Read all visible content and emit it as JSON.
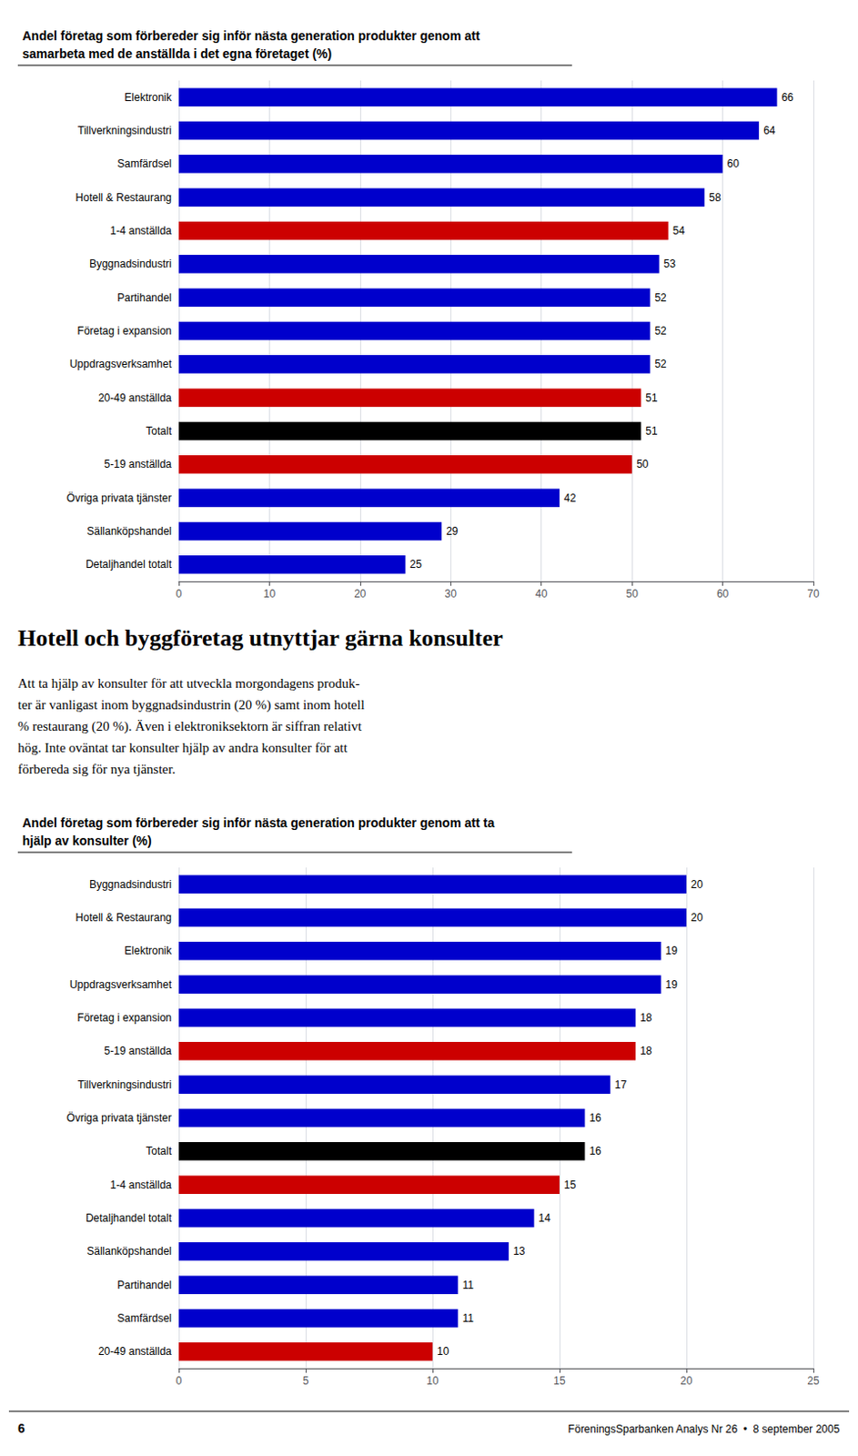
{
  "chart_data": [
    {
      "type": "bar",
      "title": "Andel företag som förbereder sig inför nästa generation produkter genom att\nsamarbeta med de anställda i det egna företaget (%)",
      "orientation": "horizontal",
      "categories": [
        "Elektronik",
        "Tillverkningsindustri",
        "Samfärdsel",
        "Hotell & Restaurang",
        "1-4 anställda",
        "Byggnadsindustri",
        "Partihandel",
        "Företag i expansion",
        "Uppdragsverksamhet",
        "20-49 anställda",
        "Totalt",
        "5-19 anställda",
        "Övriga privata tjänster",
        "Sällanköpshandel",
        "Detaljhandel totalt"
      ],
      "values": [
        66,
        64,
        60,
        58,
        54,
        53,
        52,
        52,
        52,
        51,
        51,
        50,
        42,
        29,
        25
      ],
      "colors": [
        "#0000cc",
        "#0000cc",
        "#0000cc",
        "#0000cc",
        "#cc0000",
        "#0000cc",
        "#0000cc",
        "#0000cc",
        "#0000cc",
        "#cc0000",
        "#000000",
        "#cc0000",
        "#0000cc",
        "#0000cc",
        "#0000cc"
      ],
      "xlim": [
        0,
        70
      ],
      "xticks": [
        0,
        10,
        20,
        30,
        40,
        50,
        60,
        70
      ],
      "grid": true,
      "data_labels": true,
      "annotations": [
        "Hotell och byggföretag utnyttjar gärna konsulter",
        "Att ta hjälp av konsulter för att utveckla morgondagens produk-\nter är vanligast inom byggnadsindustrin (20 %) samt inom hotell\n% restaurang (20 %). Även i elektroniksektorn är siffran relativt\nhög. Inte oväntat tar konsulter hjälp av andra konsulter för att\nförbereda sig för nya tjänster."
      ]
    },
    {
      "type": "bar",
      "title": "Andel företag som förbereder sig inför nästa generation produkter genom att ta\nhjälp av konsulter (%)",
      "orientation": "horizontal",
      "categories": [
        "Byggnadsindustri",
        "Hotell & Restaurang",
        "Elektronik",
        "Uppdragsverksamhet",
        "Företag i expansion",
        "5-19 anställda",
        "Tillverkningsindustri",
        "Övriga privata tjänster",
        "Totalt",
        "1-4 anställda",
        "Detaljhandel totalt",
        "Sällanköpshandel",
        "Partihandel",
        "Samfärdsel",
        "20-49 anställda"
      ],
      "values": [
        20,
        20,
        19,
        19,
        18,
        18,
        17,
        16,
        16,
        15,
        14,
        13,
        11,
        11,
        10
      ],
      "colors": [
        "#0000cc",
        "#0000cc",
        "#0000cc",
        "#0000cc",
        "#0000cc",
        "#cc0000",
        "#0000cc",
        "#0000cc",
        "#000000",
        "#cc0000",
        "#0000cc",
        "#0000cc",
        "#0000cc",
        "#0000cc",
        "#cc0000"
      ],
      "xlim": [
        0,
        25
      ],
      "xticks": [
        0,
        5,
        10,
        15,
        20,
        25
      ],
      "grid": true,
      "data_labels": true,
      "annotations": [
        "6",
        "FöreningsSparbanken Analys Nr 26  •  8 september 2005"
      ]
    }
  ]
}
